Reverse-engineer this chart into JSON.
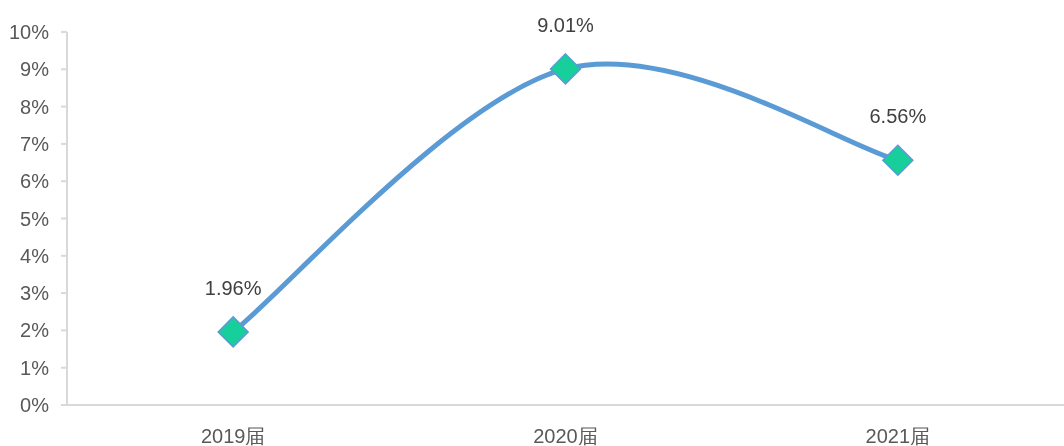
{
  "chart_data": {
    "type": "line",
    "categories": [
      "2019届",
      "2020届",
      "2021届"
    ],
    "series": [
      {
        "color": "#5b9bd5",
        "colors": [
          "#17cf9b",
          "#17cf9b",
          "#17cf9b"
        ],
        "values": [
          1.96,
          9.01,
          6.56
        ],
        "value_labels": [
          "1.96%",
          "9.01%",
          "6.56%"
        ]
      }
    ],
    "ylim": [
      0,
      10
    ],
    "yticks": [
      {
        "value": 0,
        "label": "0%"
      },
      {
        "value": 1,
        "label": "1%"
      },
      {
        "value": 2,
        "label": "2%"
      },
      {
        "value": 3,
        "label": "3%"
      },
      {
        "value": 4,
        "label": "4%"
      },
      {
        "value": 5,
        "label": "5%"
      },
      {
        "value": 6,
        "label": "6%"
      },
      {
        "value": 7,
        "label": "7%"
      },
      {
        "value": 8,
        "label": "8%"
      },
      {
        "value": 9,
        "label": "9%"
      },
      {
        "value": 10,
        "label": "10%"
      }
    ],
    "grid": false,
    "marker": "diamond",
    "line_style": "solid"
  }
}
